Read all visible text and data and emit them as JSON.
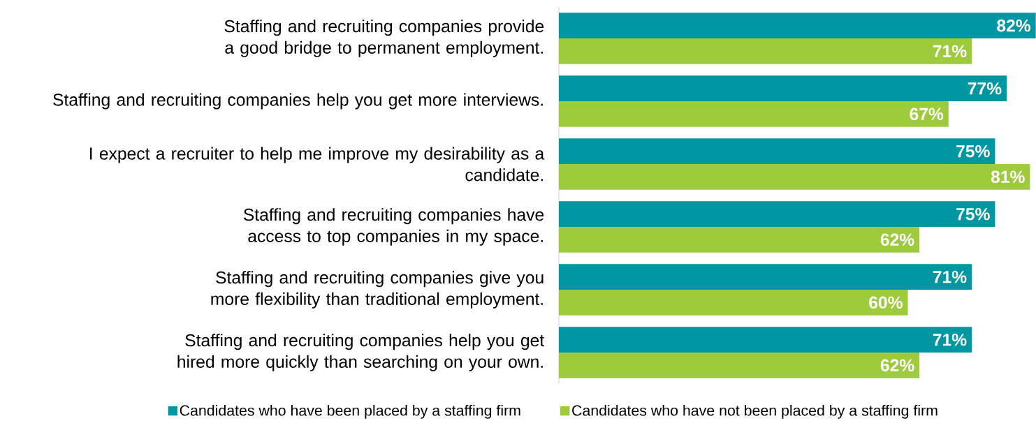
{
  "chart_data": {
    "type": "bar",
    "orientation": "horizontal",
    "legend": "bottom",
    "xlim": [
      0,
      82
    ],
    "categories": [
      "Staffing and recruiting companies provide a good bridge to permanent employment.",
      "Staffing and recruiting companies help you get more interviews.",
      "I expect a recruiter to help me improve my desirability as a candidate.",
      "Staffing and recruiting companies have access to top companies in my space.",
      "Staffing and recruiting companies give you more flexibility than traditional employment.",
      "Staffing and recruiting companies help you get hired more quickly than searching on your own."
    ],
    "series": [
      {
        "name": "Candidates who have been placed by a staffing firm",
        "color": "#0097a3",
        "values": [
          82,
          77,
          75,
          75,
          71,
          71
        ],
        "value_labels": [
          "82%",
          "77%",
          "75%",
          "75%",
          "71%",
          "71%"
        ]
      },
      {
        "name": "Candidates who have not been placed by a staffing firm",
        "color": "#9ecb3c",
        "values": [
          71,
          67,
          81,
          62,
          60,
          62
        ],
        "value_labels": [
          "71%",
          "67%",
          "81%",
          "62%",
          "60%",
          "62%"
        ]
      }
    ]
  }
}
